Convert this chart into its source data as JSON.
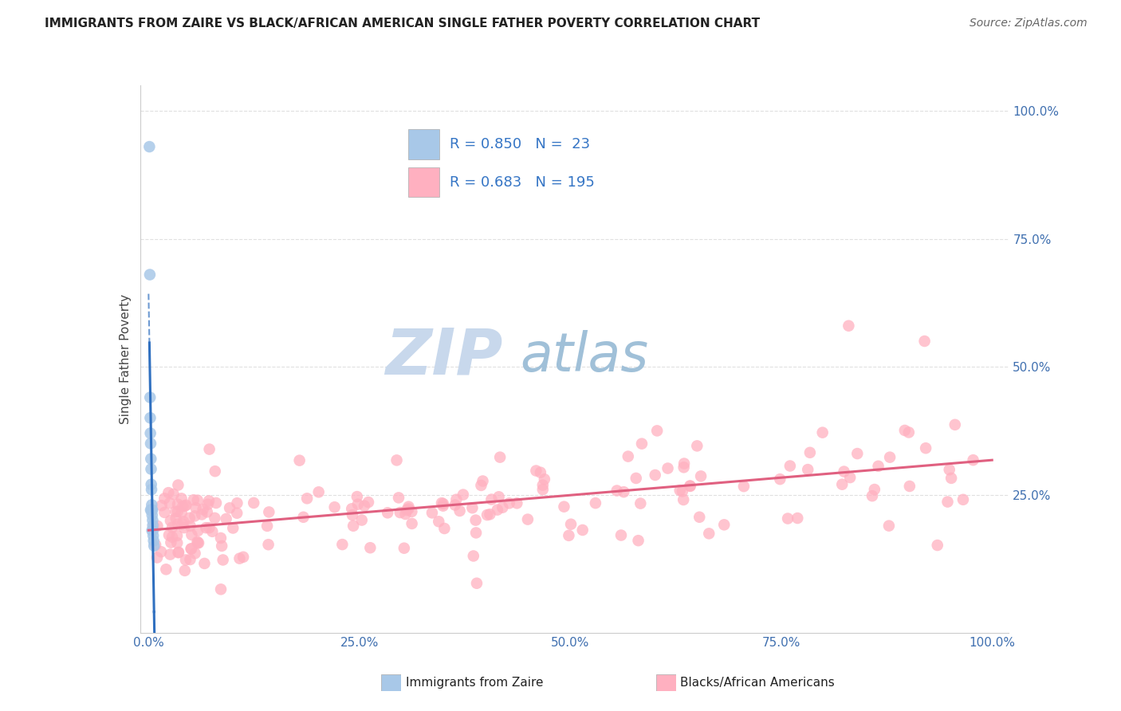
{
  "title": "IMMIGRANTS FROM ZAIRE VS BLACK/AFRICAN AMERICAN SINGLE FATHER POVERTY CORRELATION CHART",
  "source": "Source: ZipAtlas.com",
  "ylabel": "Single Father Poverty",
  "xtick_labels": [
    "0.0%",
    "25.0%",
    "50.0%",
    "75.0%",
    "100.0%"
  ],
  "ytick_labels": [
    "25.0%",
    "50.0%",
    "75.0%",
    "100.0%"
  ],
  "legend_labels": [
    "Immigrants from Zaire",
    "Blacks/African Americans"
  ],
  "blue_R": "0.850",
  "blue_N": "23",
  "pink_R": "0.683",
  "pink_N": "195",
  "blue_color": "#A8C8E8",
  "pink_color": "#FFB0C0",
  "blue_line_color": "#3070C0",
  "pink_line_color": "#E06080",
  "watermark_zip": "ZIP",
  "watermark_atlas": "atlas",
  "watermark_zip_color": "#C8D8EC",
  "watermark_atlas_color": "#A0C0D8",
  "background_color": "#FFFFFF",
  "grid_color": "#E0E0E0",
  "tick_color": "#4070B0",
  "title_color": "#222222",
  "legend_text_color": "#222222",
  "legend_value_color": "#3575C5"
}
